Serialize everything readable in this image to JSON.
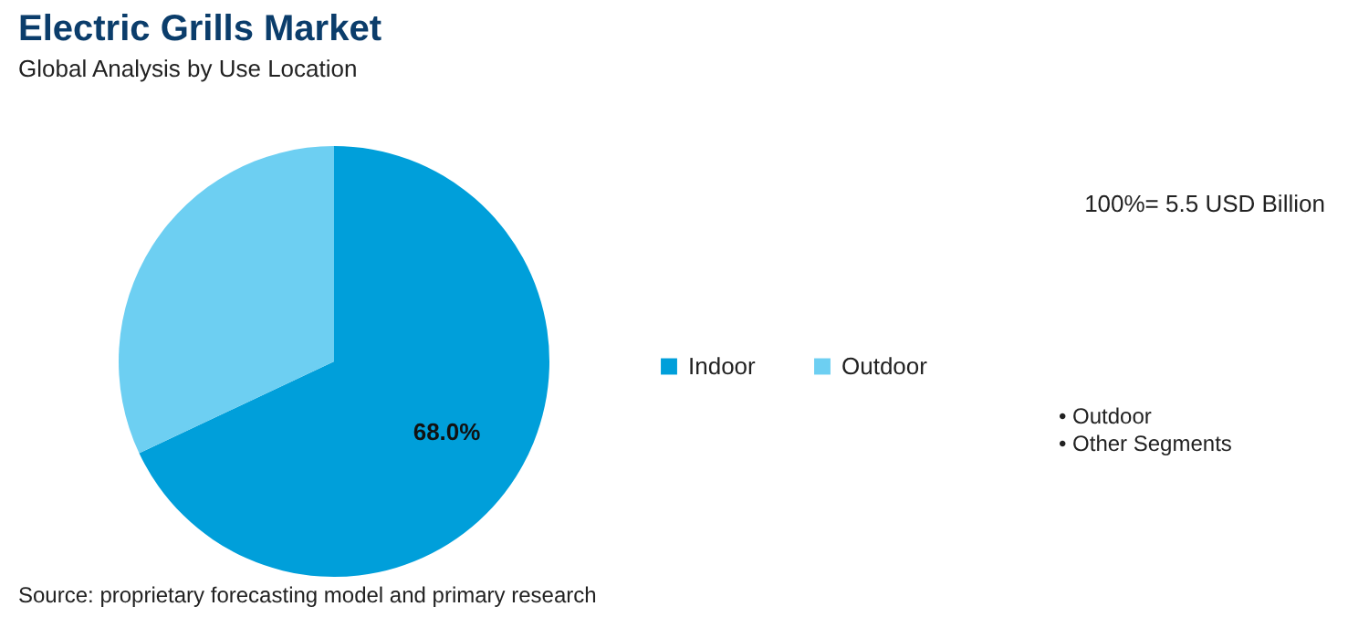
{
  "chart_data": {
    "type": "pie",
    "title": "Electric Grills Market",
    "subtitle": "Global Analysis by Use Location",
    "categories": [
      "Indoor",
      "Outdoor"
    ],
    "values": [
      68.0,
      32.0
    ],
    "colors": [
      "#009fda",
      "#6dcff2"
    ],
    "value_labels": [
      "68.0%",
      null
    ],
    "legend": "right",
    "annotations": [
      "100%= 5.5 USD Billion",
      "• Outdoor",
      "• Other Segments",
      "Source: proprietary forecasting model and primary research"
    ]
  }
}
